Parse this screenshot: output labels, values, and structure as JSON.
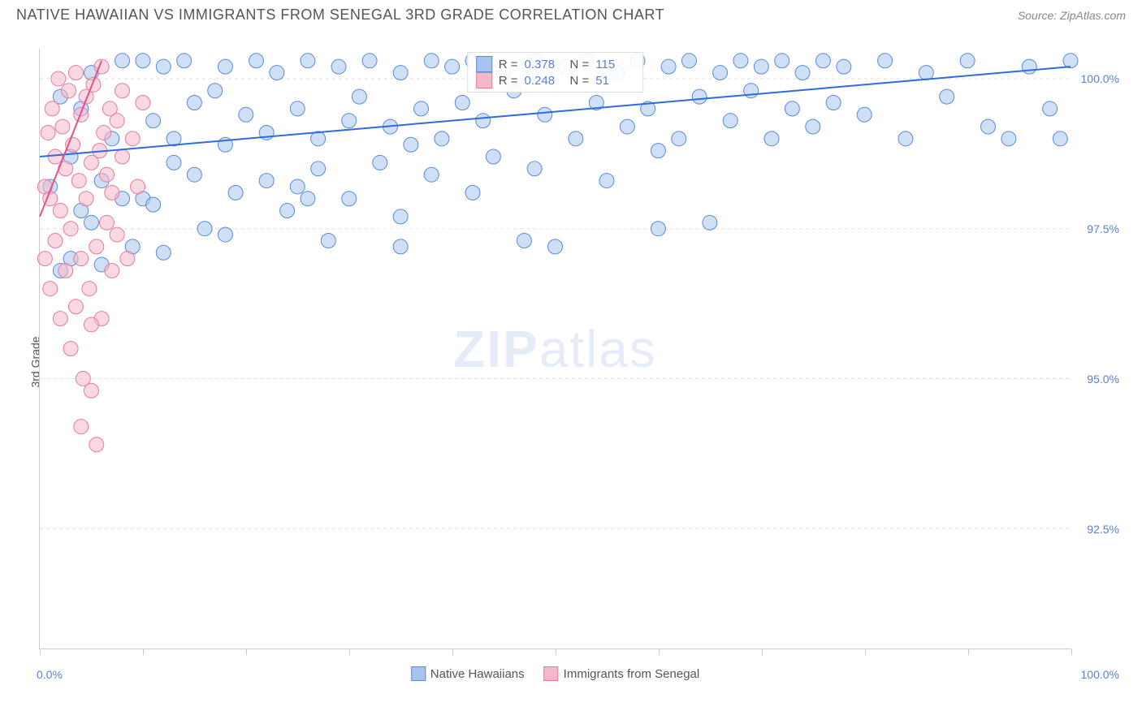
{
  "header": {
    "title": "NATIVE HAWAIIAN VS IMMIGRANTS FROM SENEGAL 3RD GRADE CORRELATION CHART",
    "source": "Source: ZipAtlas.com"
  },
  "chart": {
    "type": "scatter",
    "ylabel": "3rd Grade",
    "xlim": [
      0,
      100
    ],
    "ylim": [
      90.5,
      100.5
    ],
    "ytick_labels": [
      "92.5%",
      "95.0%",
      "97.5%",
      "100.0%"
    ],
    "ytick_values": [
      92.5,
      95.0,
      97.5,
      100.0
    ],
    "xtick_positions": [
      0,
      10,
      20,
      30,
      40,
      50,
      60,
      70,
      80,
      90,
      100
    ],
    "xaxis_left": "0.0%",
    "xaxis_right": "100.0%",
    "background_color": "#ffffff",
    "grid_color": "#dddddd",
    "marker_radius": 9,
    "marker_opacity": 0.55,
    "line_width": 2,
    "series": [
      {
        "name": "Native Hawaiians",
        "color_fill": "#a8c4ee",
        "color_stroke": "#5b8ad6",
        "line_color": "#2d6cdf",
        "R": "0.378",
        "N": "115",
        "trend": {
          "x1": 0,
          "y1": 98.7,
          "x2": 100,
          "y2": 100.2
        },
        "points": [
          [
            1,
            98.2
          ],
          [
            2,
            99.7
          ],
          [
            3,
            97.0
          ],
          [
            3,
            98.7
          ],
          [
            4,
            99.5
          ],
          [
            5,
            100.1
          ],
          [
            5,
            97.6
          ],
          [
            6,
            96.9
          ],
          [
            7,
            99.0
          ],
          [
            8,
            100.3
          ],
          [
            9,
            97.2
          ],
          [
            10,
            100.3
          ],
          [
            10,
            98.0
          ],
          [
            11,
            99.3
          ],
          [
            12,
            100.2
          ],
          [
            12,
            97.1
          ],
          [
            13,
            98.6
          ],
          [
            13,
            99.0
          ],
          [
            14,
            100.3
          ],
          [
            15,
            98.4
          ],
          [
            15,
            99.6
          ],
          [
            16,
            97.5
          ],
          [
            17,
            99.8
          ],
          [
            18,
            100.2
          ],
          [
            18,
            97.4
          ],
          [
            19,
            98.1
          ],
          [
            20,
            99.4
          ],
          [
            21,
            100.3
          ],
          [
            22,
            98.3
          ],
          [
            22,
            99.1
          ],
          [
            23,
            100.1
          ],
          [
            24,
            97.8
          ],
          [
            25,
            99.5
          ],
          [
            25,
            98.2
          ],
          [
            26,
            100.3
          ],
          [
            27,
            99.0
          ],
          [
            27,
            98.5
          ],
          [
            28,
            97.3
          ],
          [
            29,
            100.2
          ],
          [
            30,
            99.3
          ],
          [
            30,
            98.0
          ],
          [
            31,
            99.7
          ],
          [
            32,
            100.3
          ],
          [
            33,
            98.6
          ],
          [
            34,
            99.2
          ],
          [
            35,
            100.1
          ],
          [
            35,
            97.7
          ],
          [
            36,
            98.9
          ],
          [
            37,
            99.5
          ],
          [
            38,
            100.3
          ],
          [
            38,
            98.4
          ],
          [
            39,
            99.0
          ],
          [
            40,
            100.2
          ],
          [
            41,
            99.6
          ],
          [
            42,
            98.1
          ],
          [
            42,
            100.3
          ],
          [
            43,
            99.3
          ],
          [
            44,
            98.7
          ],
          [
            45,
            100.1
          ],
          [
            46,
            99.8
          ],
          [
            47,
            97.3
          ],
          [
            48,
            100.3
          ],
          [
            48,
            98.5
          ],
          [
            49,
            99.4
          ],
          [
            50,
            97.2
          ],
          [
            51,
            100.2
          ],
          [
            52,
            99.0
          ],
          [
            53,
            100.3
          ],
          [
            54,
            99.6
          ],
          [
            55,
            98.3
          ],
          [
            56,
            100.1
          ],
          [
            57,
            99.2
          ],
          [
            58,
            100.3
          ],
          [
            59,
            99.5
          ],
          [
            60,
            98.8
          ],
          [
            61,
            100.2
          ],
          [
            62,
            99.0
          ],
          [
            63,
            100.3
          ],
          [
            64,
            99.7
          ],
          [
            65,
            97.6
          ],
          [
            66,
            100.1
          ],
          [
            67,
            99.3
          ],
          [
            68,
            100.3
          ],
          [
            69,
            99.8
          ],
          [
            70,
            100.2
          ],
          [
            71,
            99.0
          ],
          [
            72,
            100.3
          ],
          [
            73,
            99.5
          ],
          [
            74,
            100.1
          ],
          [
            75,
            99.2
          ],
          [
            76,
            100.3
          ],
          [
            77,
            99.6
          ],
          [
            78,
            100.2
          ],
          [
            80,
            99.4
          ],
          [
            82,
            100.3
          ],
          [
            84,
            99.0
          ],
          [
            86,
            100.1
          ],
          [
            88,
            99.7
          ],
          [
            90,
            100.3
          ],
          [
            92,
            99.2
          ],
          [
            94,
            99.0
          ],
          [
            96,
            100.2
          ],
          [
            98,
            99.5
          ],
          [
            100,
            100.3
          ],
          [
            99,
            99.0
          ],
          [
            60,
            97.5
          ],
          [
            35,
            97.2
          ],
          [
            18,
            98.9
          ],
          [
            8,
            98.0
          ],
          [
            2,
            96.8
          ],
          [
            4,
            97.8
          ],
          [
            6,
            98.3
          ],
          [
            11,
            97.9
          ],
          [
            26,
            98.0
          ],
          [
            43,
            99.9
          ]
        ]
      },
      {
        "name": "Immigrants from Senegal",
        "color_fill": "#f5b8c9",
        "color_stroke": "#e57a9e",
        "line_color": "#e84f8a",
        "R": "0.248",
        "N": "51",
        "trend": {
          "x1": 0,
          "y1": 97.7,
          "x2": 6,
          "y2": 100.3
        },
        "points": [
          [
            0.5,
            97.0
          ],
          [
            0.5,
            98.2
          ],
          [
            0.8,
            99.1
          ],
          [
            1.0,
            96.5
          ],
          [
            1.0,
            98.0
          ],
          [
            1.2,
            99.5
          ],
          [
            1.5,
            97.3
          ],
          [
            1.5,
            98.7
          ],
          [
            1.8,
            100.0
          ],
          [
            2.0,
            96.0
          ],
          [
            2.0,
            97.8
          ],
          [
            2.2,
            99.2
          ],
          [
            2.5,
            98.5
          ],
          [
            2.5,
            96.8
          ],
          [
            2.8,
            99.8
          ],
          [
            3.0,
            95.5
          ],
          [
            3.0,
            97.5
          ],
          [
            3.2,
            98.9
          ],
          [
            3.5,
            100.1
          ],
          [
            3.5,
            96.2
          ],
          [
            3.8,
            98.3
          ],
          [
            4.0,
            99.4
          ],
          [
            4.0,
            97.0
          ],
          [
            4.2,
            95.0
          ],
          [
            4.5,
            98.0
          ],
          [
            4.5,
            99.7
          ],
          [
            4.8,
            96.5
          ],
          [
            5.0,
            94.8
          ],
          [
            5.0,
            98.6
          ],
          [
            5.2,
            99.9
          ],
          [
            5.5,
            97.2
          ],
          [
            5.5,
            93.9
          ],
          [
            5.8,
            98.8
          ],
          [
            6.0,
            100.2
          ],
          [
            6.0,
            96.0
          ],
          [
            6.2,
            99.1
          ],
          [
            6.5,
            97.6
          ],
          [
            6.5,
            98.4
          ],
          [
            6.8,
            99.5
          ],
          [
            7.0,
            96.8
          ],
          [
            7.0,
            98.1
          ],
          [
            7.5,
            99.3
          ],
          [
            7.5,
            97.4
          ],
          [
            8.0,
            98.7
          ],
          [
            8.0,
            99.8
          ],
          [
            8.5,
            97.0
          ],
          [
            9.0,
            99.0
          ],
          [
            9.5,
            98.2
          ],
          [
            10.0,
            99.6
          ],
          [
            5.0,
            95.9
          ],
          [
            4.0,
            94.2
          ]
        ]
      }
    ]
  },
  "legend": {
    "series1": "Native Hawaiians",
    "series2": "Immigrants from Senegal"
  },
  "stats": {
    "r_label": "R =",
    "n_label": "N ="
  },
  "watermark": {
    "part1": "ZIP",
    "part2": "atlas"
  }
}
